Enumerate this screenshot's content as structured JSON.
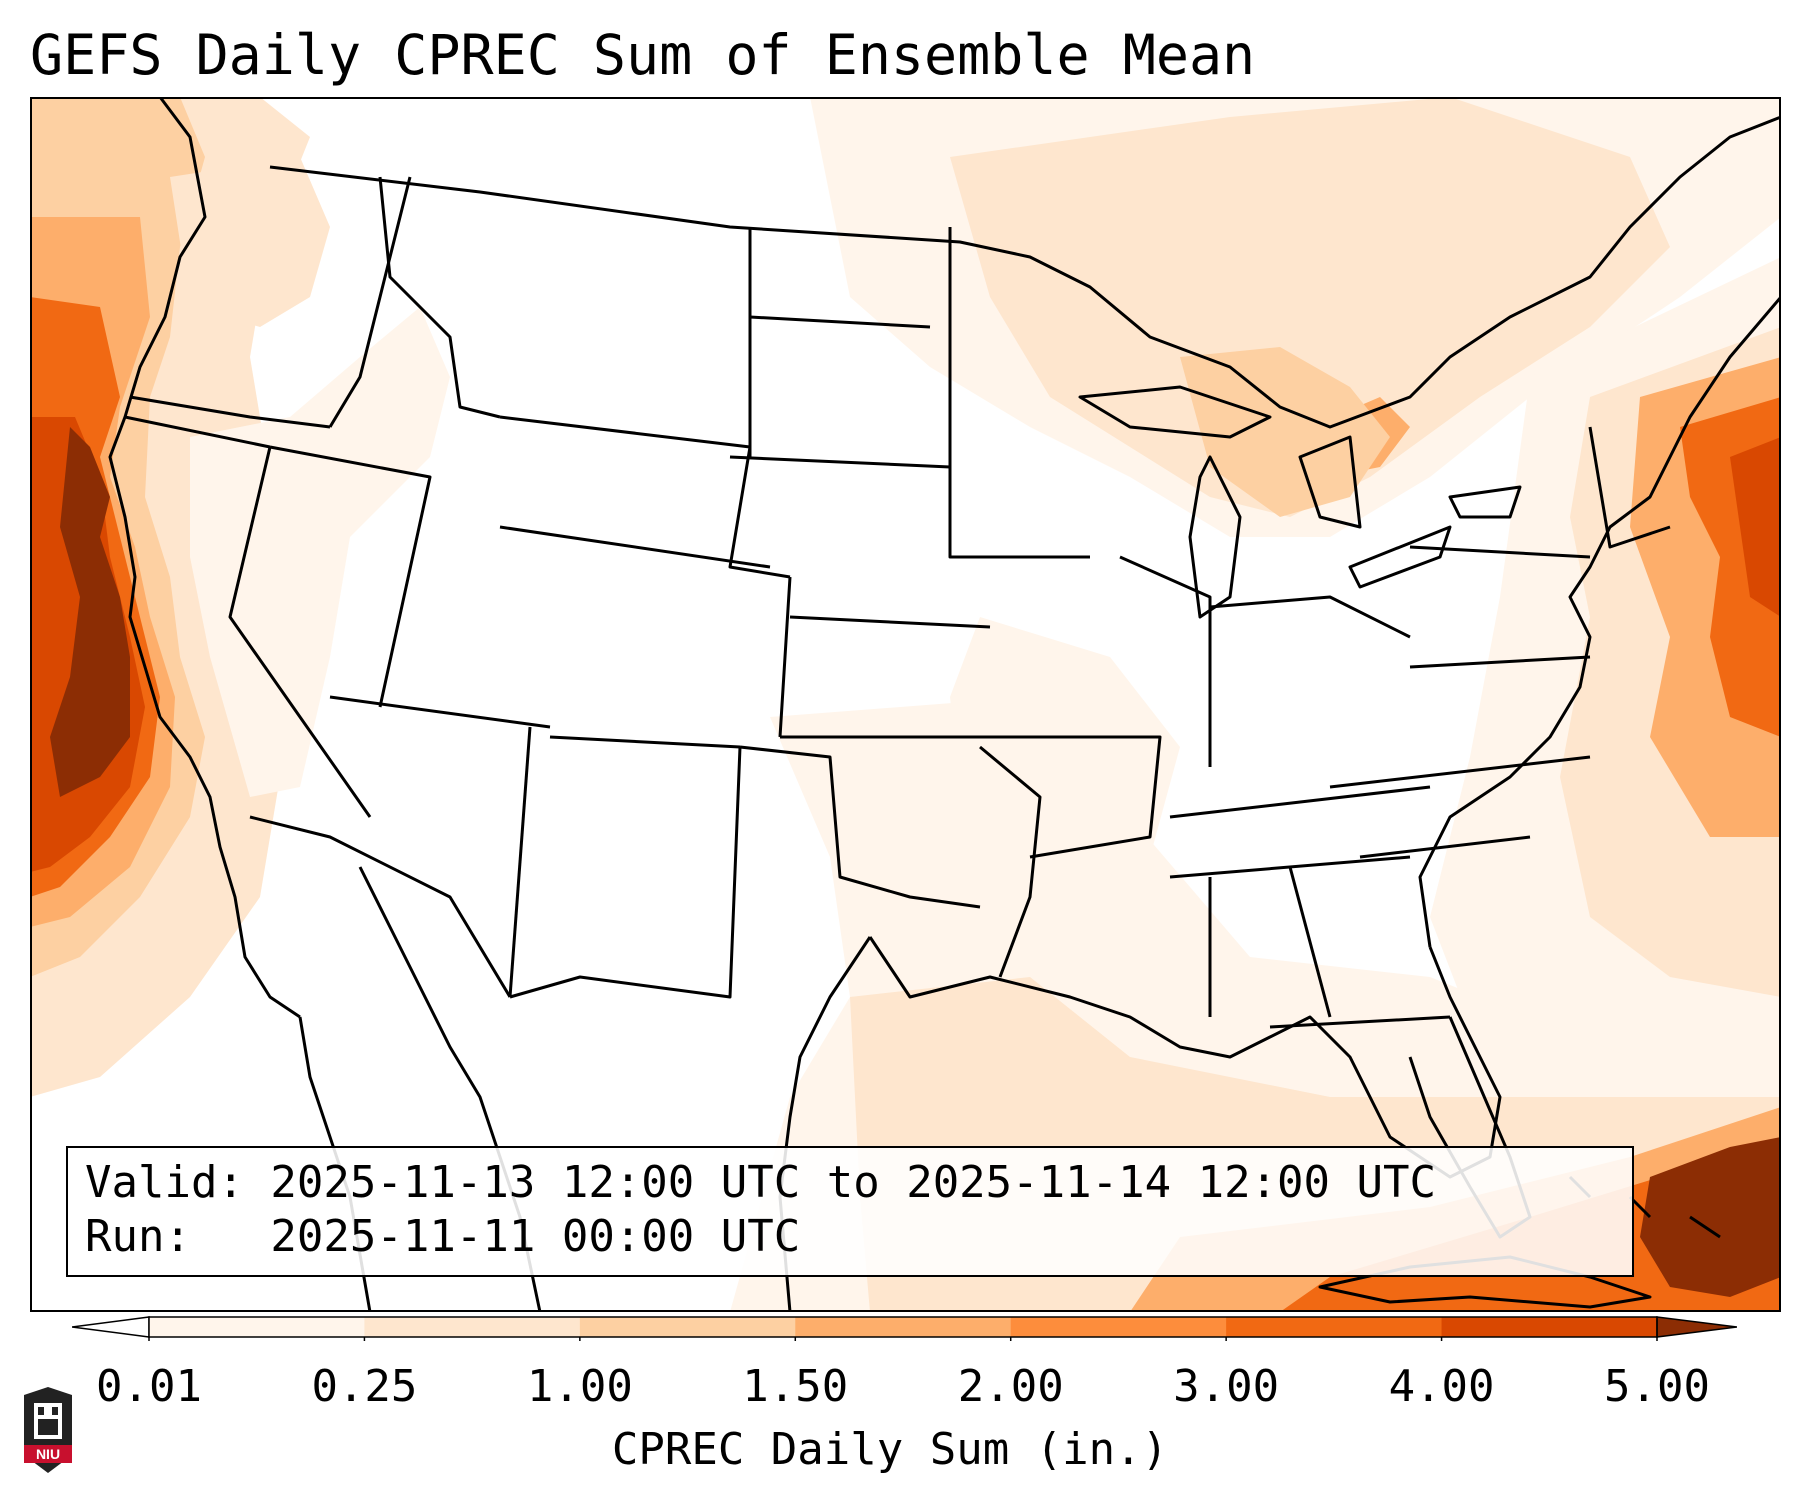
{
  "title": "GEFS Daily CPREC Sum of Ensemble Mean",
  "info": {
    "valid_line": "Valid: 2025-11-13 12:00 UTC to 2025-11-14 12:00 UTC",
    "run_line": "Run:   2025-11-11 00:00 UTC"
  },
  "colorbar": {
    "label": "CPREC Daily Sum (in.)",
    "ticks": [
      "0.01",
      "0.25",
      "1.00",
      "1.50",
      "2.00",
      "3.00",
      "4.00",
      "5.00"
    ],
    "colors": [
      "#fff5eb",
      "#fee6ce",
      "#fdd0a2",
      "#fdae6b",
      "#fd8d3c",
      "#f16913",
      "#d94801",
      "#8c2d04"
    ],
    "extend": "both"
  },
  "logo": {
    "text": "NIU",
    "colors": {
      "shield": "#c8102e",
      "dark": "#222222"
    }
  }
}
